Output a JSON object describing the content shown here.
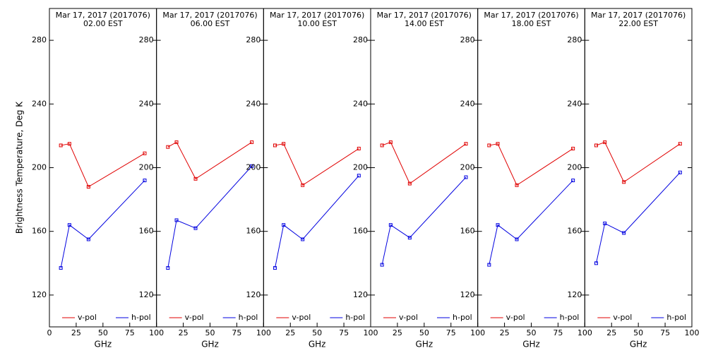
{
  "chart_data": [
    {
      "type": "line",
      "title": "Mar 17, 2017 (2017076)",
      "subtitle": "02.00 EST",
      "ylabel": "Brightness Temperature, Deg K",
      "xlabel": "GHz",
      "x": [
        10.65,
        18.7,
        36.5,
        89
      ],
      "xlim": [
        0,
        100
      ],
      "xticks": [
        0,
        25,
        50,
        75,
        100
      ],
      "ylim": [
        100,
        300
      ],
      "yticks": [
        120,
        160,
        200,
        240,
        280
      ],
      "series": [
        {
          "name": "v-pol",
          "color": "#e00000",
          "values": [
            214,
            215,
            188,
            209
          ]
        },
        {
          "name": "h-pol",
          "color": "#0000e0",
          "values": [
            137,
            164,
            155,
            192
          ]
        }
      ]
    },
    {
      "type": "line",
      "title": "Mar 17, 2017 (2017076)",
      "subtitle": "06.00 EST",
      "xlabel": "GHz",
      "x": [
        10.65,
        18.7,
        36.5,
        89
      ],
      "xlim": [
        0,
        100
      ],
      "xticks": [
        25,
        50,
        75,
        100
      ],
      "ylim": [
        100,
        300
      ],
      "yticks": [
        120,
        160,
        200,
        240,
        280
      ],
      "series": [
        {
          "name": "v-pol",
          "color": "#e00000",
          "values": [
            213,
            216,
            193,
            216
          ]
        },
        {
          "name": "h-pol",
          "color": "#0000e0",
          "values": [
            137,
            167,
            162,
            201
          ]
        }
      ]
    },
    {
      "type": "line",
      "title": "Mar 17, 2017 (2017076)",
      "subtitle": "10.00 EST",
      "xlabel": "GHz",
      "x": [
        10.65,
        18.7,
        36.5,
        89
      ],
      "xlim": [
        0,
        100
      ],
      "xticks": [
        25,
        50,
        75,
        100
      ],
      "ylim": [
        100,
        300
      ],
      "yticks": [
        120,
        160,
        200,
        240,
        280
      ],
      "series": [
        {
          "name": "v-pol",
          "color": "#e00000",
          "values": [
            214,
            215,
            189,
            212
          ]
        },
        {
          "name": "h-pol",
          "color": "#0000e0",
          "values": [
            137,
            164,
            155,
            195
          ]
        }
      ]
    },
    {
      "type": "line",
      "title": "Mar 17, 2017 (2017076)",
      "subtitle": "14.00 EST",
      "xlabel": "GHz",
      "x": [
        10.65,
        18.7,
        36.5,
        89
      ],
      "xlim": [
        0,
        100
      ],
      "xticks": [
        25,
        50,
        75,
        100
      ],
      "ylim": [
        100,
        300
      ],
      "yticks": [
        120,
        160,
        200,
        240,
        280
      ],
      "series": [
        {
          "name": "v-pol",
          "color": "#e00000",
          "values": [
            214,
            216,
            190,
            215
          ]
        },
        {
          "name": "h-pol",
          "color": "#0000e0",
          "values": [
            139,
            164,
            156,
            194
          ]
        }
      ]
    },
    {
      "type": "line",
      "title": "Mar 17, 2017 (2017076)",
      "subtitle": "18.00 EST",
      "xlabel": "GHz",
      "x": [
        10.65,
        18.7,
        36.5,
        89
      ],
      "xlim": [
        0,
        100
      ],
      "xticks": [
        25,
        50,
        75,
        100
      ],
      "ylim": [
        100,
        300
      ],
      "yticks": [
        120,
        160,
        200,
        240,
        280
      ],
      "series": [
        {
          "name": "v-pol",
          "color": "#e00000",
          "values": [
            214,
            215,
            189,
            212
          ]
        },
        {
          "name": "h-pol",
          "color": "#0000e0",
          "values": [
            139,
            164,
            155,
            192
          ]
        }
      ]
    },
    {
      "type": "line",
      "title": "Mar 17, 2017 (2017076)",
      "subtitle": "22.00 EST",
      "xlabel": "GHz",
      "x": [
        10.65,
        18.7,
        36.5,
        89
      ],
      "xlim": [
        0,
        100
      ],
      "xticks": [
        25,
        50,
        75,
        100
      ],
      "ylim": [
        100,
        300
      ],
      "yticks": [
        120,
        160,
        200,
        240,
        280
      ],
      "series": [
        {
          "name": "v-pol",
          "color": "#e00000",
          "values": [
            214,
            216,
            191,
            215
          ]
        },
        {
          "name": "h-pol",
          "color": "#0000e0",
          "values": [
            140,
            165,
            159,
            197
          ]
        }
      ]
    }
  ]
}
